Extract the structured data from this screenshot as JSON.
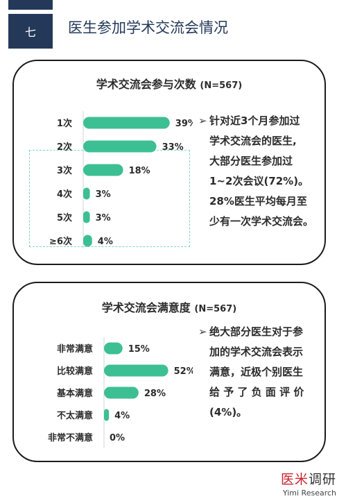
{
  "header": {
    "section_number": "七",
    "title": "医生参加学术交流会情况"
  },
  "panels": [
    {
      "title": "学术交流会参与次数",
      "n_label": "(N=567)",
      "bullet_lines": [
        "针对近3个月参加过",
        "学术交流会的医生,",
        "大部分医生参加过",
        "1~2次会议(72%)。",
        "28%医生平均每月至",
        "少有一次学术交流会。"
      ]
    },
    {
      "title": "学术交流会满意度",
      "n_label": "(N=567)",
      "bullet_lines": [
        "绝大部分医生对于参",
        "加的学术交流会表示",
        "满意，近极个别医生",
        "给 予 了 负 面 评 价",
        "(4%)。"
      ]
    }
  ],
  "chart_data": [
    {
      "type": "bar",
      "orientation": "horizontal",
      "title": "学术交流会参与次数",
      "categories": [
        "1次",
        "2次",
        "3次",
        "4次",
        "5次",
        "≥6次"
      ],
      "values": [
        39,
        33,
        18,
        3,
        3,
        4
      ],
      "value_labels": [
        "39%",
        "33%",
        "18%",
        "3%",
        "3%",
        "4%"
      ],
      "unit": "%",
      "xlim": [
        0,
        40
      ],
      "color": "#3dbf94",
      "highlight_categories": [
        "3次",
        "4次",
        "5次",
        "≥6次"
      ],
      "highlight_color": "#7fd3cc"
    },
    {
      "type": "bar",
      "orientation": "horizontal",
      "title": "学术交流会满意度",
      "categories": [
        "非常满意",
        "比较满意",
        "基本满意",
        "不太满意",
        "非常不满意"
      ],
      "values": [
        15,
        52,
        28,
        4,
        0
      ],
      "value_labels": [
        "15%",
        "52%",
        "28%",
        "4%",
        "0%"
      ],
      "unit": "%",
      "xlim": [
        0,
        55
      ],
      "color": "#3dbf94"
    }
  ],
  "brand": {
    "name_red": "医米",
    "name_dark": "调研",
    "name_en": "Yimi Research"
  }
}
